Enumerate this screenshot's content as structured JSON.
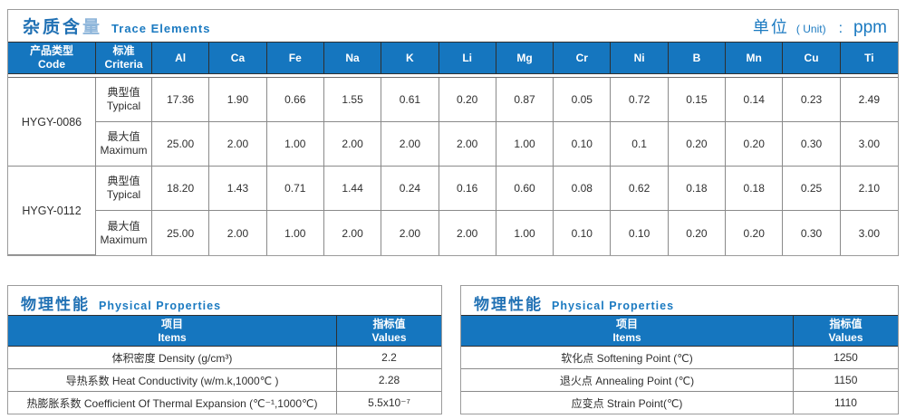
{
  "colors": {
    "header_blue": "#1576bf",
    "title_blue": "#2171b4",
    "title_blue_light": "#8db5da",
    "subtitle_blue": "#1b7ac1",
    "grid_gray": "#8a8a8a",
    "dark_line": "#2f2f2f"
  },
  "trace": {
    "title_zh_main": "杂质含",
    "title_zh_accent": "量",
    "title_en": "Trace Elements",
    "unit_zh": "单位",
    "unit_en": "( Unit)",
    "unit_colon": ":",
    "unit_val": "ppm",
    "col_code_zh": "产品类型",
    "col_code_en": "Code",
    "col_criteria_zh": "标准",
    "col_criteria_en": "Criteria",
    "elements": [
      "Al",
      "Ca",
      "Fe",
      "Na",
      "K",
      "Li",
      "Mg",
      "Cr",
      "Ni",
      "B",
      "Mn",
      "Cu",
      "Ti"
    ],
    "rows": [
      {
        "code": "HYGY-0086",
        "crit_zh": "典型值",
        "crit_en": "Typical",
        "values": [
          "17.36",
          "1.90",
          "0.66",
          "1.55",
          "0.61",
          "0.20",
          "0.87",
          "0.05",
          "0.72",
          "0.15",
          "0.14",
          "0.23",
          "2.49"
        ]
      },
      {
        "crit_zh": "最大值",
        "crit_en": "Maximum",
        "values": [
          "25.00",
          "2.00",
          "1.00",
          "2.00",
          "2.00",
          "2.00",
          "1.00",
          "0.10",
          "0.1",
          "0.20",
          "0.20",
          "0.30",
          "3.00"
        ]
      },
      {
        "code": "HYGY-0112",
        "crit_zh": "典型值",
        "crit_en": "Typical",
        "values": [
          "18.20",
          "1.43",
          "0.71",
          "1.44",
          "0.24",
          "0.16",
          "0.60",
          "0.08",
          "0.62",
          "0.18",
          "0.18",
          "0.25",
          "2.10"
        ]
      },
      {
        "crit_zh": "最大值",
        "crit_en": "Maximum",
        "values": [
          "25.00",
          "2.00",
          "1.00",
          "2.00",
          "2.00",
          "2.00",
          "1.00",
          "0.10",
          "0.10",
          "0.20",
          "0.20",
          "0.30",
          "3.00"
        ]
      }
    ]
  },
  "phys_left": {
    "title_zh": "物理性能",
    "title_en": "Physical Properties",
    "col_items_zh": "项目",
    "col_items_en": "Items",
    "col_values_zh": "指标值",
    "col_values_en": "Values",
    "rows": [
      {
        "item": "体积密度 Density (g/cm³)",
        "value": "2.2"
      },
      {
        "item": "导热系数 Heat Conductivity (w/m.k,1000℃ )",
        "value": "2.28"
      },
      {
        "item": "热膨胀系数 Coefficient Of Thermal Expansion (℃⁻¹,1000℃)",
        "value": "5.5x10⁻⁷"
      }
    ]
  },
  "phys_right": {
    "title_zh": "物理性能",
    "title_en": "Physical Properties",
    "col_items_zh": "项目",
    "col_items_en": "Items",
    "col_values_zh": "指标值",
    "col_values_en": "Values",
    "rows": [
      {
        "item": "软化点 Softening Point (℃)",
        "value": "1250"
      },
      {
        "item": "退火点 Annealing Point (℃)",
        "value": "1150"
      },
      {
        "item": "应变点 Strain Point(℃)",
        "value": "1110"
      }
    ]
  }
}
